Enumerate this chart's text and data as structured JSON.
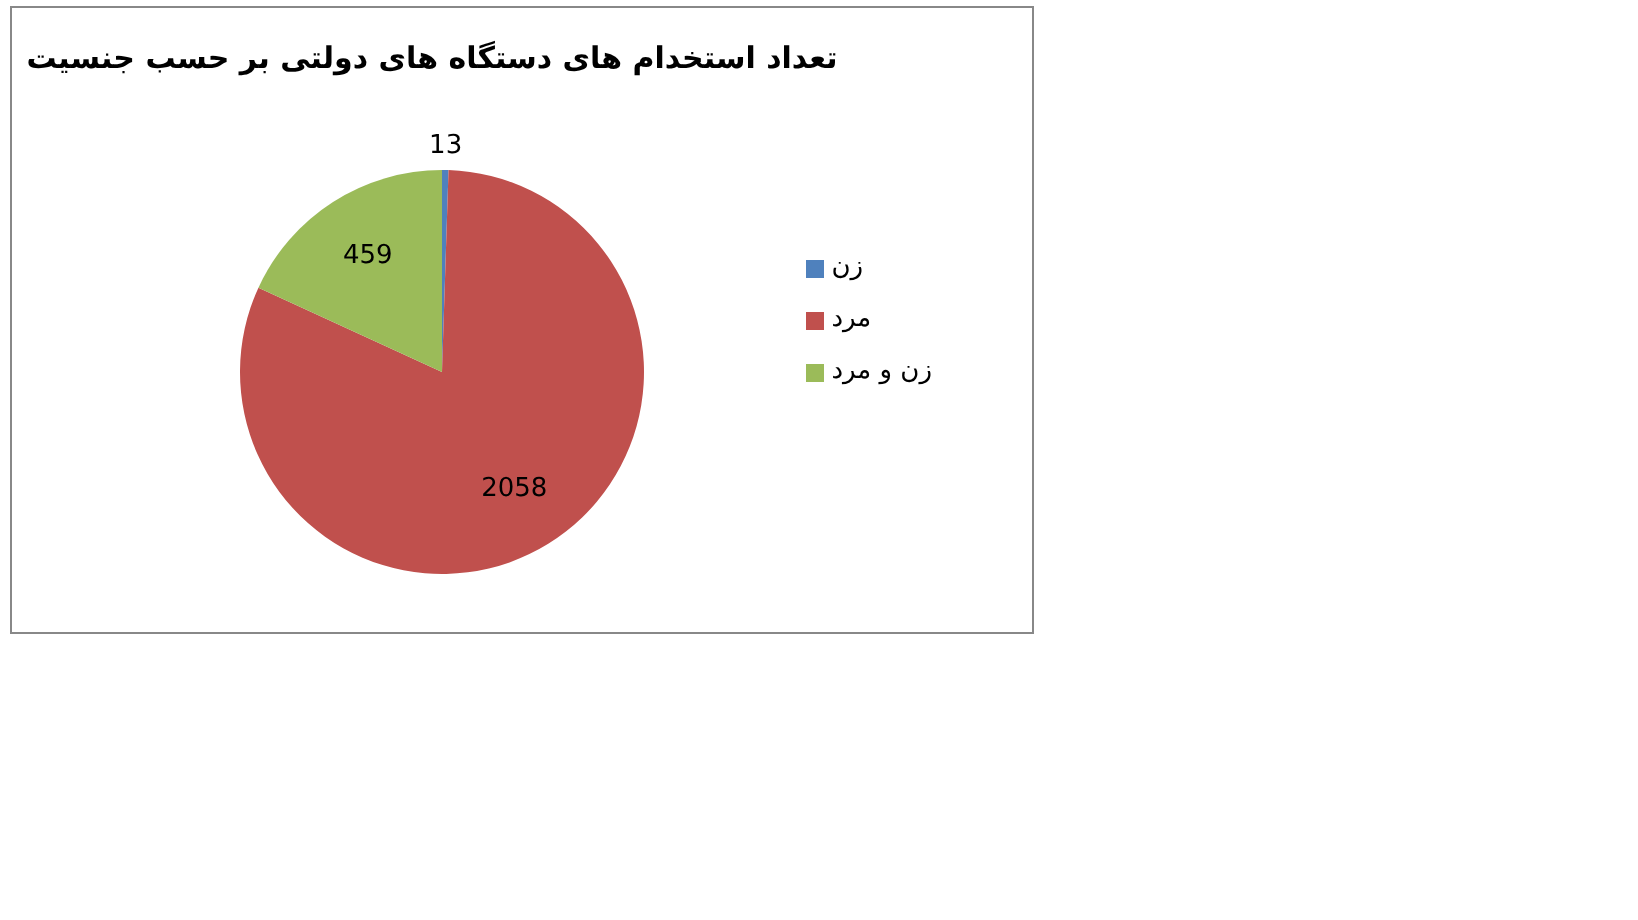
{
  "chart_data": {
    "type": "pie",
    "title": "تعداد استخدام های دستگاه های دولتی بر حسب جنسیت",
    "categories": [
      "زن",
      "مرد",
      "زن و مرد"
    ],
    "values": [
      13,
      2058,
      459
    ],
    "colors": [
      "#4f81bd",
      "#c0504d",
      "#9bbb59"
    ],
    "data_labels": true,
    "legend": "right"
  }
}
